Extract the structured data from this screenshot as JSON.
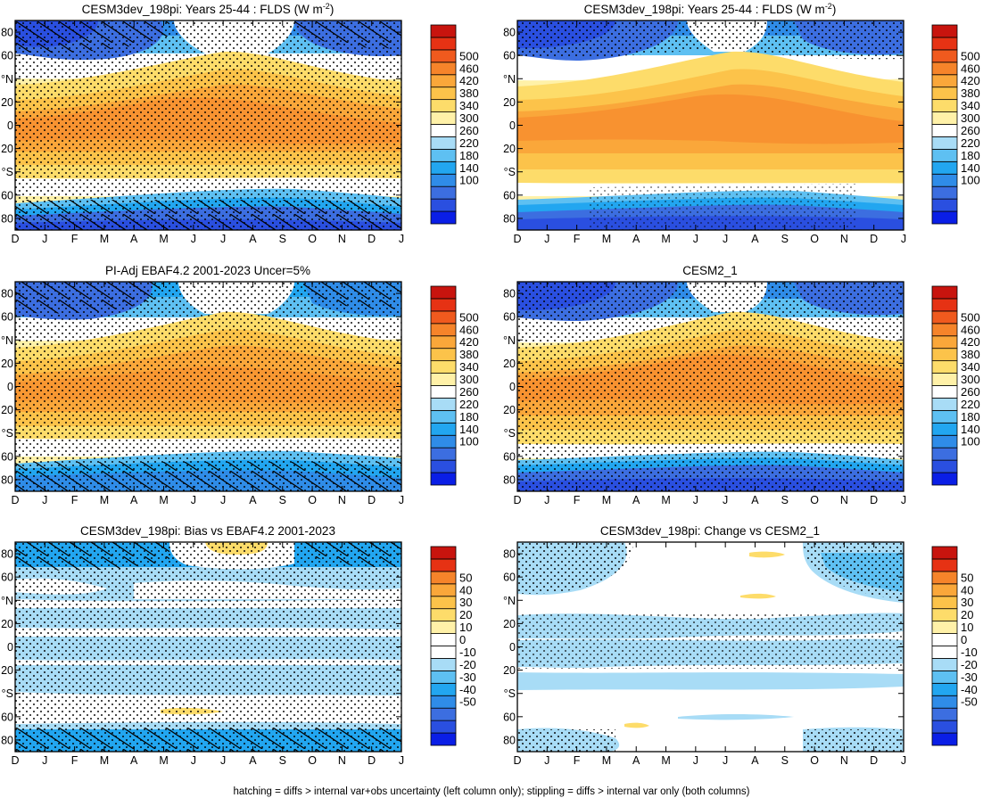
{
  "figure": {
    "footnote": "hatching = diffs > internal var+obs uncertainty (left column only); stippling = diffs > internal var only (both columns)"
  },
  "axes": {
    "months": [
      "D",
      "J",
      "F",
      "M",
      "A",
      "M",
      "J",
      "J",
      "A",
      "S",
      "O",
      "N",
      "D",
      "J"
    ],
    "lat_ticks": [
      {
        "lat": 80,
        "label": "80"
      },
      {
        "lat": 60,
        "label": "60"
      },
      {
        "lat": 40,
        "label": "°N"
      },
      {
        "lat": 20,
        "label": "20"
      },
      {
        "lat": 0,
        "label": "0"
      },
      {
        "lat": -20,
        "label": "20"
      },
      {
        "lat": -40,
        "label": "°S"
      },
      {
        "lat": -60,
        "label": "60"
      },
      {
        "lat": -80,
        "label": "80"
      }
    ],
    "lat_range": [
      -90,
      90
    ]
  },
  "colorbars": {
    "flds": {
      "labels": [
        "500",
        "460",
        "420",
        "380",
        "340",
        "300",
        "260",
        "220",
        "180",
        "140",
        "100"
      ],
      "colors": [
        "#0a1ee6",
        "#2a4fe0",
        "#3c6ee0",
        "#2f8ce8",
        "#22a6f0",
        "#5ec0f2",
        "#a8dcf6",
        "#ffffff",
        "#fff1a8",
        "#fddc6a",
        "#fcc34a",
        "#faa73a",
        "#f6842a",
        "#f05a1e",
        "#e63214",
        "#c8140e"
      ]
    },
    "diff": {
      "labels": [
        "50",
        "40",
        "30",
        "20",
        "10",
        "0",
        "-10",
        "-20",
        "-30",
        "-40",
        "-50"
      ],
      "colors": [
        "#0a1ee6",
        "#2a4fe0",
        "#3c6ee0",
        "#2f8ce8",
        "#22a6f0",
        "#5ec0f2",
        "#a8dcf6",
        "#ffffff",
        "#ffffff",
        "#fff1a8",
        "#fddc6a",
        "#fcc34a",
        "#faa73a",
        "#f6842a",
        "#e63214",
        "#c8140e"
      ]
    }
  },
  "panels": [
    {
      "title": "CESM3dev_198pi: Years 25-44 : FLDS (W m-2)",
      "title_main": "CESM3dev_198pi: Years 25-44 : FLDS (W m",
      "title_sup": "-2",
      "title_end": ")"
    },
    {
      "title": "CESM3dev_198pi: Years 25-44 : FLDS (W m-2)",
      "title_main": "CESM3dev_198pi: Years 25-44 : FLDS (W m",
      "title_sup": "-2",
      "title_end": ")"
    },
    {
      "title": "PI-Adj EBAF4.2 2001-2023 Uncer=5%",
      "title_main": "PI-Adj EBAF4.2 2001-2023 Uncer=5%",
      "title_sup": "",
      "title_end": ""
    },
    {
      "title": "CESM2_1",
      "title_main": "CESM2_1",
      "title_sup": "",
      "title_end": ""
    },
    {
      "title": "CESM3dev_198pi: Bias vs EBAF4.2 2001-2023",
      "title_main": "CESM3dev_198pi: Bias vs EBAF4.2 2001-2023",
      "title_sup": "",
      "title_end": ""
    },
    {
      "title": "CESM3dev_198pi: Change vs CESM2_1",
      "title_main": "CESM3dev_198pi: Change vs CESM2_1",
      "title_sup": "",
      "title_end": ""
    }
  ],
  "chart_data": [
    {
      "type": "heatmap",
      "title": "CESM3dev_198pi: Years 25-44 : FLDS (W m-2)",
      "variable": "FLDS",
      "units": "W m-2",
      "x": "month (Dec to Jan)",
      "y": "latitude",
      "approx_profile": [
        {
          "lat": 85,
          "value": 150
        },
        {
          "lat": 60,
          "value": 230
        },
        {
          "lat": 40,
          "value": 300
        },
        {
          "lat": 20,
          "value": 380
        },
        {
          "lat": 0,
          "value": 410
        },
        {
          "lat": -20,
          "value": 370
        },
        {
          "lat": -40,
          "value": 320
        },
        {
          "lat": -55,
          "value": 290
        },
        {
          "lat": -70,
          "value": 180
        },
        {
          "lat": -85,
          "value": 110
        }
      ],
      "peak_nh_summer": {
        "month": "J",
        "lat": 30,
        "value": 420
      },
      "hatching": "polar regions",
      "stippling": "widespread"
    },
    {
      "type": "heatmap",
      "title": "CESM3dev_198pi: Years 25-44 : FLDS (W m-2)",
      "variable": "FLDS",
      "units": "W m-2",
      "approx_profile": [
        {
          "lat": 85,
          "value": 150
        },
        {
          "lat": 60,
          "value": 230
        },
        {
          "lat": 40,
          "value": 300
        },
        {
          "lat": 20,
          "value": 390
        },
        {
          "lat": 0,
          "value": 410
        },
        {
          "lat": -20,
          "value": 370
        },
        {
          "lat": -40,
          "value": 320
        },
        {
          "lat": -55,
          "value": 290
        },
        {
          "lat": -70,
          "value": 180
        },
        {
          "lat": -85,
          "value": 110
        }
      ],
      "stippling": "high latitudes"
    },
    {
      "type": "heatmap",
      "title": "PI-Adj EBAF4.2 2001-2023 Uncer=5%",
      "variable": "FLDS",
      "units": "W m-2",
      "approx_profile": [
        {
          "lat": 85,
          "value": 160
        },
        {
          "lat": 60,
          "value": 240
        },
        {
          "lat": 40,
          "value": 300
        },
        {
          "lat": 20,
          "value": 380
        },
        {
          "lat": 0,
          "value": 400
        },
        {
          "lat": -20,
          "value": 370
        },
        {
          "lat": -40,
          "value": 320
        },
        {
          "lat": -55,
          "value": 290
        },
        {
          "lat": -70,
          "value": 200
        },
        {
          "lat": -85,
          "value": 120
        }
      ],
      "hatching": "polar regions",
      "stippling": "widespread"
    },
    {
      "type": "heatmap",
      "title": "CESM2_1",
      "variable": "FLDS",
      "units": "W m-2",
      "approx_profile": [
        {
          "lat": 85,
          "value": 150
        },
        {
          "lat": 60,
          "value": 230
        },
        {
          "lat": 40,
          "value": 300
        },
        {
          "lat": 20,
          "value": 390
        },
        {
          "lat": 0,
          "value": 410
        },
        {
          "lat": -20,
          "value": 370
        },
        {
          "lat": -40,
          "value": 320
        },
        {
          "lat": -55,
          "value": 290
        },
        {
          "lat": -70,
          "value": 180
        },
        {
          "lat": -85,
          "value": 110
        }
      ],
      "stippling": "widespread"
    },
    {
      "type": "heatmap",
      "title": "CESM3dev_198pi: Bias vs EBAF4.2 2001-2023",
      "variable": "FLDS bias",
      "units": "W m-2",
      "approx_profile": [
        {
          "lat": 85,
          "value": -20
        },
        {
          "lat": 60,
          "value": -10
        },
        {
          "lat": 45,
          "value": 0
        },
        {
          "lat": 30,
          "value": -10
        },
        {
          "lat": 15,
          "value": -10
        },
        {
          "lat": 0,
          "value": -10
        },
        {
          "lat": -15,
          "value": -10
        },
        {
          "lat": -35,
          "value": -10
        },
        {
          "lat": -55,
          "value": 0
        },
        {
          "lat": -80,
          "value": -20
        }
      ],
      "positive_patches": [
        {
          "month": "J",
          "lat": 85,
          "value": 10
        },
        {
          "month": "J",
          "lat": -58,
          "value": 10
        }
      ],
      "hatching": "polar regions",
      "stippling": "widespread"
    },
    {
      "type": "heatmap",
      "title": "CESM3dev_198pi: Change vs CESM2_1",
      "variable": "FLDS change",
      "units": "W m-2",
      "approx_profile": [
        {
          "lat": 85,
          "value": -10
        },
        {
          "lat": 60,
          "value": -10
        },
        {
          "lat": 40,
          "value": 0
        },
        {
          "lat": 25,
          "value": -10
        },
        {
          "lat": 5,
          "value": -10
        },
        {
          "lat": -25,
          "value": -10
        },
        {
          "lat": -50,
          "value": 0
        },
        {
          "lat": -80,
          "value": -10
        }
      ],
      "positive_patches": [
        {
          "month": "A",
          "lat": 82,
          "value": 10
        },
        {
          "month": "J",
          "lat": 38,
          "value": 10
        },
        {
          "month": "A",
          "lat": -65,
          "value": 10
        }
      ],
      "stippling": "scattered"
    }
  ]
}
